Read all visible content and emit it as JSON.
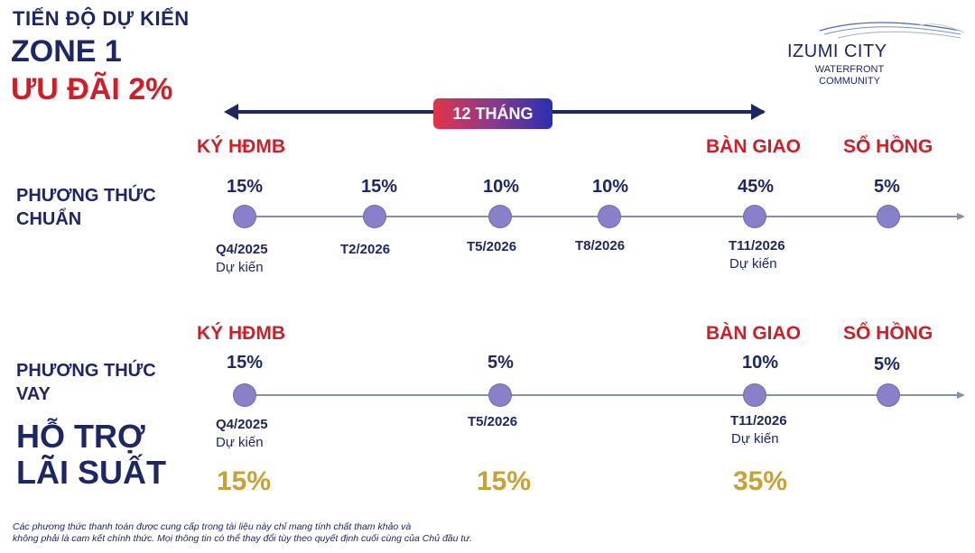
{
  "header": {
    "line1": "TIẾN ĐỘ DỰ KIẾN",
    "line2": "ZONE 1",
    "line3": "ƯU ĐÃI 2%"
  },
  "logo": {
    "name": "IZUMI CITY",
    "sub1": "WATERFRONT",
    "sub2": "COMMUNITY"
  },
  "duration_badge": "12 THÁNG",
  "plan_standard": {
    "label_line1": "PHƯƠNG THỨC",
    "label_line2": "CHUẨN",
    "stages": {
      "sign": "KÝ HĐMB",
      "handover": "BÀN GIAO",
      "pinkbook": "SỔ HỒNG"
    },
    "milestones": [
      {
        "percent": "15%",
        "date": "Q4/2025",
        "note": "Dự kiến"
      },
      {
        "percent": "15%",
        "date": "T2/2026",
        "note": ""
      },
      {
        "percent": "10%",
        "date": "T5/2026",
        "note": ""
      },
      {
        "percent": "10%",
        "date": "T8/2026",
        "note": ""
      },
      {
        "percent": "45%",
        "date": "T11/2026",
        "note": "Dự kiến"
      },
      {
        "percent": "5%",
        "date": "",
        "note": ""
      }
    ]
  },
  "plan_loan": {
    "label_line1": "PHƯƠNG THỨC",
    "label_line2": "VAY",
    "stages": {
      "sign": "KÝ HĐMB",
      "handover": "BÀN GIAO",
      "pinkbook": "SỔ HỒNG"
    },
    "milestones": [
      {
        "percent": "15%",
        "date": "Q4/2025",
        "note": "Dự kiến"
      },
      {
        "percent": "5%",
        "date": "T5/2026",
        "note": ""
      },
      {
        "percent": "10%",
        "date": "T11/2026",
        "note": "Dự kiến"
      },
      {
        "percent": "5%",
        "date": "",
        "note": ""
      }
    ],
    "support_line1": "HỖ TRỢ",
    "support_line2": "LÃI SUẤT",
    "support_values": [
      "15%",
      "15%",
      "35%"
    ]
  },
  "footnote_line1": "Các phương thức thanh toán được cung cấp trong tài liệu này chỉ mang tính chất tham khảo và",
  "footnote_line2": "không phải là cam kết chính thức. Mọi thông tin có thể thay đổi tùy theo quyết định cuối cùng của Chủ đầu tư.",
  "colors": {
    "navy": "#1e2766",
    "red": "#cc1f27",
    "gold": "#c9a033",
    "dot": "#8880c8"
  }
}
